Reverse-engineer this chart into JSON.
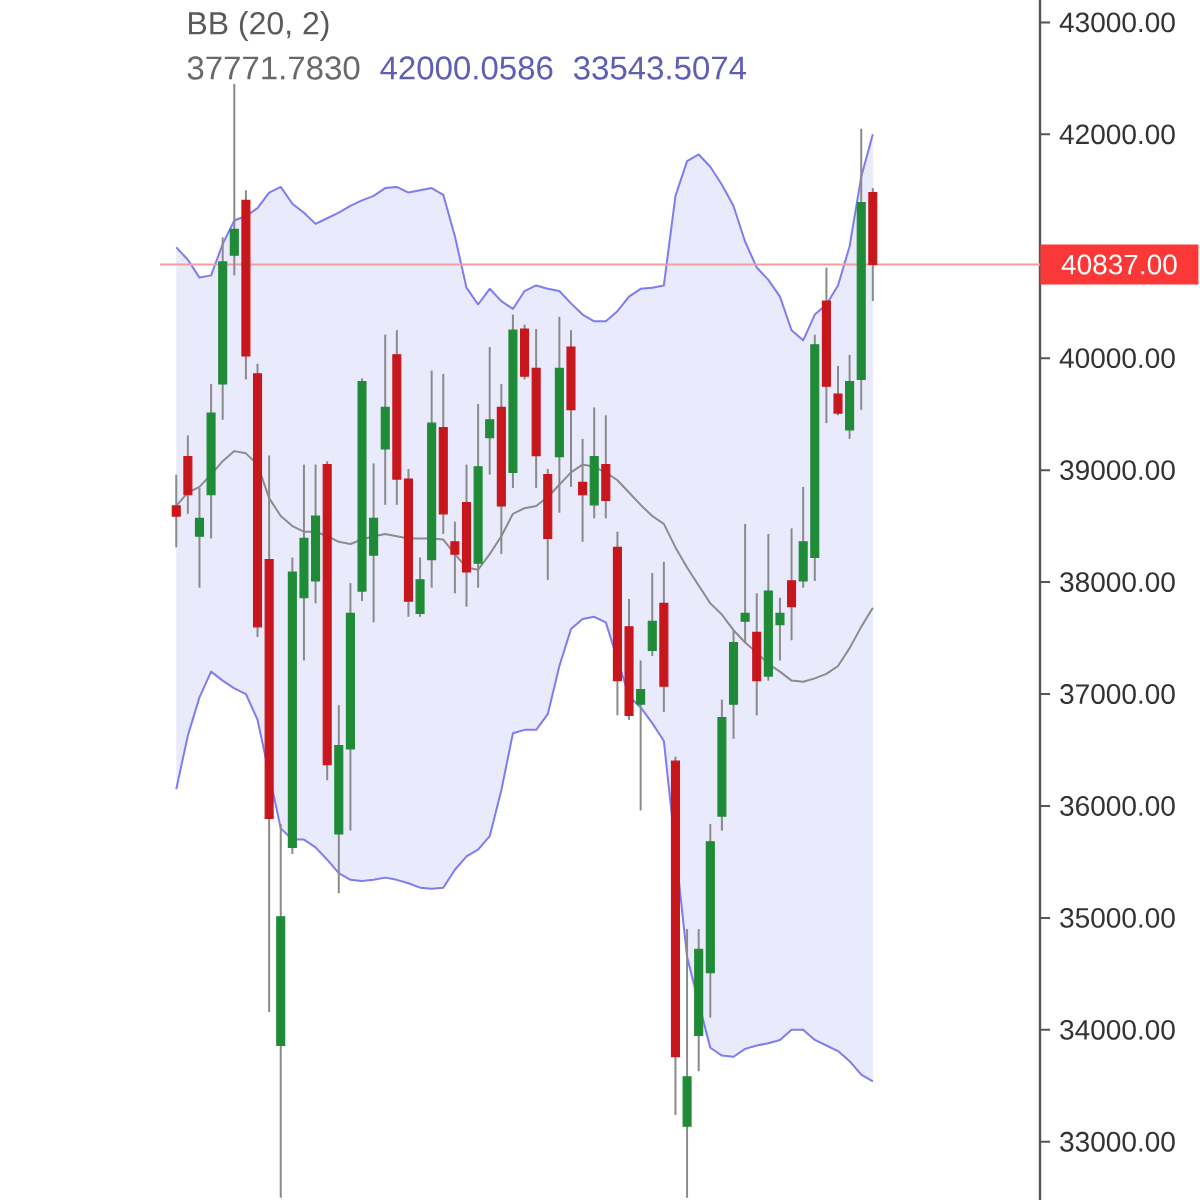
{
  "chart_data": {
    "type": "candlestick",
    "title": "BB (20, 2)",
    "annotations": [
      "37771.7830",
      "42000.0586",
      "33543.5074"
    ],
    "categories": [
      null,
      null,
      null,
      null,
      null,
      null,
      null,
      null,
      null,
      null,
      null,
      null,
      null,
      null,
      null,
      null,
      null,
      null,
      null,
      null,
      null,
      null,
      null,
      null,
      null,
      null,
      null,
      null,
      null,
      null,
      null,
      null,
      null,
      null,
      null,
      null,
      null,
      null,
      null,
      null,
      null,
      null,
      null,
      null,
      null,
      null,
      null,
      null,
      null,
      null,
      null,
      null,
      null,
      null,
      null,
      null,
      null,
      null,
      null,
      null,
      null
    ],
    "ohlc": [
      [
        38680,
        38960,
        38310,
        38590
      ],
      [
        39120,
        39310,
        38610,
        38780
      ],
      [
        38410,
        38840,
        37950,
        38570
      ],
      [
        38780,
        39770,
        38390,
        39510
      ],
      [
        39770,
        41080,
        39450,
        40860
      ],
      [
        40920,
        42450,
        40740,
        41150
      ],
      [
        41410,
        41500,
        39810,
        40020
      ],
      [
        39860,
        39950,
        37510,
        37600
      ],
      [
        38200,
        39130,
        34160,
        35890
      ],
      [
        33860,
        35840,
        32500,
        35010
      ],
      [
        35630,
        38220,
        35570,
        38090
      ],
      [
        37860,
        39050,
        37300,
        38390
      ],
      [
        38010,
        39050,
        37810,
        38590
      ],
      [
        39050,
        39080,
        36230,
        36370
      ],
      [
        35750,
        36900,
        35220,
        36540
      ],
      [
        36510,
        37990,
        35780,
        37720
      ],
      [
        37920,
        39820,
        37830,
        39790
      ],
      [
        38240,
        39060,
        37640,
        38570
      ],
      [
        39190,
        40210,
        38690,
        39560
      ],
      [
        40030,
        40250,
        38690,
        38920
      ],
      [
        38920,
        39010,
        37690,
        37830
      ],
      [
        37720,
        38220,
        37690,
        38020
      ],
      [
        38200,
        39890,
        37950,
        39420
      ],
      [
        39380,
        39860,
        38430,
        38610
      ],
      [
        38360,
        38540,
        37900,
        38250
      ],
      [
        38710,
        39050,
        37780,
        38090
      ],
      [
        38170,
        39590,
        37950,
        39030
      ],
      [
        39290,
        40100,
        38960,
        39450
      ],
      [
        39560,
        39770,
        38250,
        38680
      ],
      [
        38980,
        40390,
        38840,
        40250
      ],
      [
        40260,
        40300,
        39810,
        39840
      ],
      [
        39910,
        40260,
        38840,
        39130
      ],
      [
        38960,
        39010,
        38020,
        38390
      ],
      [
        39120,
        40370,
        38620,
        39910
      ],
      [
        40100,
        40250,
        38850,
        39540
      ],
      [
        38890,
        39280,
        38360,
        38780
      ],
      [
        38690,
        39560,
        38570,
        39120
      ],
      [
        39050,
        39490,
        38570,
        38730
      ],
      [
        38310,
        38450,
        36810,
        37120
      ],
      [
        37600,
        37850,
        36770,
        36810
      ],
      [
        36910,
        37300,
        35960,
        37040
      ],
      [
        37390,
        38080,
        37340,
        37650
      ],
      [
        37810,
        38180,
        36840,
        37070
      ],
      [
        36400,
        36440,
        33240,
        33760
      ],
      [
        33140,
        34900,
        32500,
        33580
      ],
      [
        33950,
        34900,
        33630,
        34720
      ],
      [
        34510,
        35840,
        34110,
        35680
      ],
      [
        35910,
        36950,
        35780,
        36790
      ],
      [
        36910,
        37570,
        36600,
        37460
      ],
      [
        37650,
        38520,
        37460,
        37720
      ],
      [
        37550,
        37900,
        36810,
        37120
      ],
      [
        37160,
        38430,
        37120,
        37920
      ],
      [
        37620,
        37860,
        37300,
        37720
      ],
      [
        38010,
        38480,
        37480,
        37780
      ],
      [
        38010,
        38850,
        37950,
        38360
      ],
      [
        38220,
        40210,
        38010,
        40120
      ],
      [
        40510,
        40810,
        39420,
        39750
      ],
      [
        39680,
        39930,
        39490,
        39510
      ],
      [
        39360,
        40030,
        39280,
        39790
      ],
      [
        39810,
        42050,
        39540,
        41390
      ],
      [
        41480,
        41520,
        40510,
        40837
      ]
    ],
    "colors": [
      "#c8161d",
      "#c8161d",
      "#1f8b37",
      "#1f8b37",
      "#1f8b37",
      "#1f8b37",
      "#c8161d",
      "#c8161d",
      "#c8161d",
      "#1f8b37",
      "#1f8b37",
      "#1f8b37",
      "#1f8b37",
      "#c8161d",
      "#1f8b37",
      "#1f8b37",
      "#1f8b37",
      "#1f8b37",
      "#1f8b37",
      "#c8161d",
      "#c8161d",
      "#1f8b37",
      "#1f8b37",
      "#c8161d",
      "#c8161d",
      "#c8161d",
      "#1f8b37",
      "#1f8b37",
      "#c8161d",
      "#1f8b37",
      "#c8161d",
      "#c8161d",
      "#c8161d",
      "#1f8b37",
      "#c8161d",
      "#c8161d",
      "#1f8b37",
      "#c8161d",
      "#c8161d",
      "#c8161d",
      "#1f8b37",
      "#1f8b37",
      "#c8161d",
      "#c8161d",
      "#1f8b37",
      "#1f8b37",
      "#1f8b37",
      "#1f8b37",
      "#1f8b37",
      "#1f8b37",
      "#c8161d",
      "#1f8b37",
      "#1f8b37",
      "#c8161d",
      "#1f8b37",
      "#1f8b37",
      "#c8161d",
      "#c8161d",
      "#1f8b37",
      "#1f8b37",
      "#c8161d"
    ],
    "series": [
      {
        "type": "line",
        "color": "#8c8c8c",
        "values": [
          38680,
          38800,
          38850,
          38960,
          39080,
          39170,
          39150,
          39050,
          38750,
          38590,
          38500,
          38450,
          38450,
          38410,
          38360,
          38340,
          38380,
          38410,
          38430,
          38410,
          38390,
          38390,
          38390,
          38380,
          38250,
          38130,
          38110,
          38250,
          38410,
          38610,
          38660,
          38680,
          38760,
          38870,
          38980,
          39050,
          39030,
          38980,
          38910,
          38800,
          38690,
          38590,
          38520,
          38310,
          38130,
          37970,
          37810,
          37710,
          37570,
          37460,
          37370,
          37270,
          37200,
          37120,
          37110,
          37140,
          37180,
          37250,
          37410,
          37600,
          37770
        ],
        "upper": [
          40990,
          40880,
          40720,
          40740,
          41020,
          41230,
          41270,
          41340,
          41480,
          41530,
          41380,
          41300,
          41200,
          41250,
          41300,
          41360,
          41410,
          41450,
          41520,
          41530,
          41480,
          41500,
          41520,
          41460,
          41090,
          40630,
          40480,
          40620,
          40510,
          40440,
          40600,
          40650,
          40620,
          40600,
          40490,
          40390,
          40330,
          40330,
          40420,
          40550,
          40620,
          40630,
          40650,
          41450,
          41760,
          41820,
          41710,
          41550,
          41360,
          41040,
          40810,
          40700,
          40550,
          40250,
          40160,
          40390,
          40480,
          40650,
          41000,
          41620,
          42000
        ],
        "lower": [
          36150,
          36630,
          36970,
          37200,
          37120,
          37050,
          37000,
          36770,
          36280,
          35800,
          35700,
          35700,
          35630,
          35520,
          35400,
          35340,
          35330,
          35340,
          35360,
          35340,
          35310,
          35270,
          35260,
          35270,
          35430,
          35550,
          35610,
          35730,
          36140,
          36650,
          36680,
          36680,
          36820,
          37250,
          37580,
          37670,
          37690,
          37640,
          37270,
          36980,
          36880,
          36740,
          36580,
          35610,
          34650,
          34070,
          33840,
          33770,
          33760,
          33830,
          33860,
          33880,
          33910,
          34000,
          34000,
          33910,
          33860,
          33810,
          33720,
          33600,
          33540
        ]
      },
      {
        "type": "line",
        "color": "#7d7df0",
        "values": [
          40990,
          40880,
          40720,
          40740,
          41020,
          41230,
          41270,
          41340,
          41480,
          41530,
          41380,
          41300,
          41200,
          41250,
          41300,
          41360,
          41410,
          41450,
          41520,
          41530,
          41480,
          41500,
          41520,
          41460,
          41090,
          40630,
          40480,
          40620,
          40510,
          40440,
          40600,
          40650,
          40620,
          40600,
          40490,
          40390,
          40330,
          40330,
          40420,
          40550,
          40620,
          40630,
          40650,
          41450,
          41760,
          41820,
          41710,
          41550,
          41360,
          41040,
          40810,
          40700,
          40550,
          40250,
          40160,
          40390,
          40480,
          40650,
          41000,
          41620,
          42000
        ]
      },
      {
        "type": "line",
        "color": "#7d7df0",
        "values": [
          36150,
          36630,
          36970,
          37200,
          37120,
          37050,
          37000,
          36770,
          null,
          35800,
          35700,
          35700,
          35630,
          35520,
          35400,
          35340,
          35330,
          35340,
          35360,
          35340,
          35310,
          35270,
          35260,
          35270,
          35430,
          35550,
          35610,
          35730,
          36140,
          36650,
          36680,
          36680,
          36820,
          37250,
          37580,
          37670,
          37690,
          37640,
          null,
          36980,
          36880,
          36740,
          36580,
          null,
          34650,
          null,
          33840,
          33770,
          33760,
          33830,
          33860,
          33880,
          33910,
          34000,
          34000,
          33910,
          33860,
          33810,
          33720,
          33600,
          33540
        ]
      }
    ],
    "ylim": [
      32480,
      43200
    ],
    "yticks": [
      {
        "value": 33000,
        "label": "33000.00"
      },
      {
        "value": 34000,
        "label": "34000.00"
      },
      {
        "value": 35000,
        "label": "35000.00"
      },
      {
        "value": 36000,
        "label": "36000.00"
      },
      {
        "value": 37000,
        "label": "37000.00"
      },
      {
        "value": 38000,
        "label": "38000.00"
      },
      {
        "value": 39000,
        "label": "39000.00"
      },
      {
        "value": 40000,
        "label": "40000.00"
      },
      {
        "value": 42000,
        "label": "42000.00"
      },
      {
        "value": 43000,
        "label": "43000.00"
      }
    ],
    "tick_labels": "y",
    "ref_lines": [
      {
        "axis": "y",
        "value": 40837,
        "label": "40837.00",
        "color": "#f59c9c"
      }
    ]
  }
}
